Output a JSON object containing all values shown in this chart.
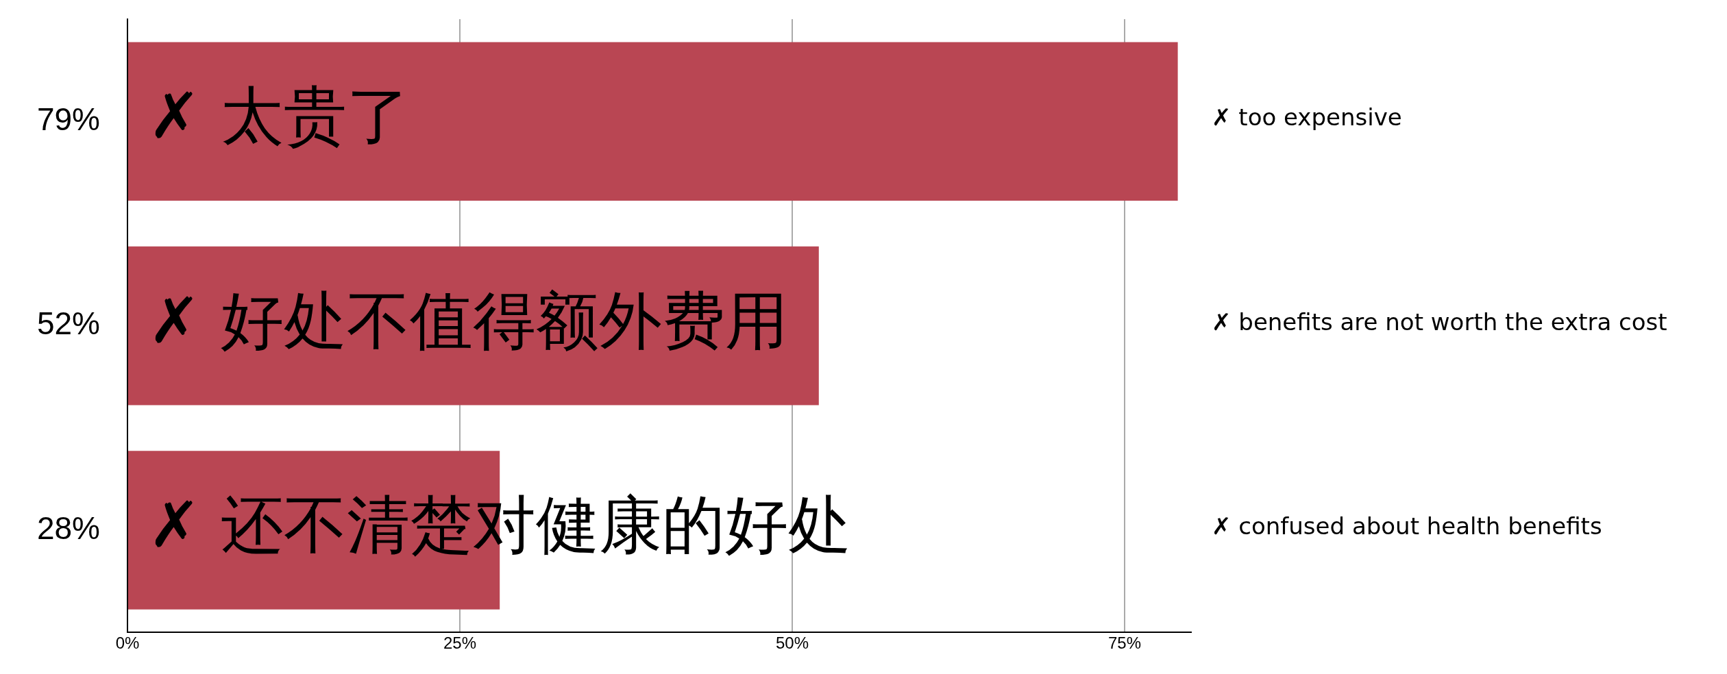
{
  "chart_data": {
    "type": "bar",
    "orientation": "horizontal",
    "categories": [
      "✗ 太贵了",
      "✗ 好处不值得额外费用",
      "✗ 还不清楚对健康的好处"
    ],
    "values": [
      79,
      52,
      28
    ],
    "color": "#b94653",
    "value_labels": [
      "79%",
      "52%",
      "28%"
    ],
    "xlim": [
      0,
      80
    ],
    "xticks": [
      {
        "value": 0,
        "label": "0%"
      },
      {
        "value": 25,
        "label": "25%"
      },
      {
        "value": 50,
        "label": "50%"
      },
      {
        "value": 75,
        "label": "75%"
      }
    ],
    "grid": "x",
    "legend": false,
    "annotations": [
      "✗ too expensive",
      "✗ benefits are not worth the extra cost",
      "✗ confused about health benefits"
    ]
  }
}
